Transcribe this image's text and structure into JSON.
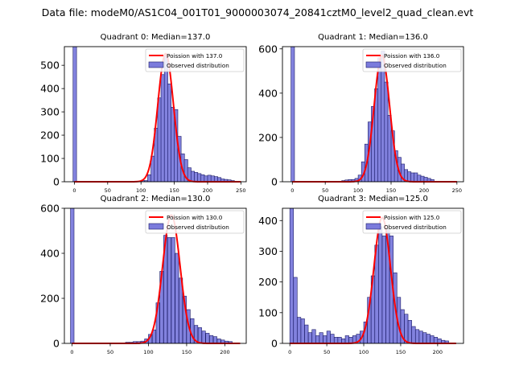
{
  "figure": {
    "title": "Data file: modeM0/AS1C04_001T01_9000003074_20841cztM0_level2_quad_clean.evt"
  },
  "colors": {
    "bar_fill": "#7b7bdc",
    "bar_edge": "#1a1a66",
    "poisson_line": "#ff0000",
    "axis": "#000000"
  },
  "chart_data": [
    {
      "type": "bar",
      "title": "Quadrant 0: Median=137.0",
      "legend": {
        "placement": "top-right",
        "line_label": "Poission with 137.0",
        "bar_label": "Observed distribution"
      },
      "xlim": [
        -15,
        258
      ],
      "ylim": [
        0,
        580
      ],
      "xticks": [
        0,
        50,
        100,
        150,
        200,
        250
      ],
      "yticks": [
        0,
        100,
        200,
        300,
        400,
        500
      ],
      "bin_width": 5.3,
      "bins": [
        {
          "x": -2,
          "y": 580
        },
        {
          "x": 100,
          "y": 5
        },
        {
          "x": 105,
          "y": 5
        },
        {
          "x": 110,
          "y": 30
        },
        {
          "x": 115,
          "y": 110
        },
        {
          "x": 120,
          "y": 230
        },
        {
          "x": 125,
          "y": 360
        },
        {
          "x": 130,
          "y": 460
        },
        {
          "x": 135,
          "y": 540
        },
        {
          "x": 140,
          "y": 420
        },
        {
          "x": 145,
          "y": 320
        },
        {
          "x": 150,
          "y": 310
        },
        {
          "x": 155,
          "y": 195
        },
        {
          "x": 160,
          "y": 120
        },
        {
          "x": 165,
          "y": 95
        },
        {
          "x": 170,
          "y": 60
        },
        {
          "x": 175,
          "y": 45
        },
        {
          "x": 180,
          "y": 40
        },
        {
          "x": 185,
          "y": 35
        },
        {
          "x": 190,
          "y": 30
        },
        {
          "x": 195,
          "y": 25
        },
        {
          "x": 200,
          "y": 28
        },
        {
          "x": 205,
          "y": 25
        },
        {
          "x": 210,
          "y": 22
        },
        {
          "x": 215,
          "y": 18
        },
        {
          "x": 220,
          "y": 12
        },
        {
          "x": 225,
          "y": 10
        },
        {
          "x": 230,
          "y": 8
        },
        {
          "x": 235,
          "y": 5
        }
      ],
      "poisson": {
        "mean": 137.0,
        "sigma": 11.7,
        "peak": 550,
        "x_start": 0,
        "x_end": 250
      }
    },
    {
      "type": "bar",
      "title": "Quadrant 1: Median=136.0",
      "legend": {
        "placement": "top-right",
        "line_label": "Poission with 136.0",
        "bar_label": "Observed distribution"
      },
      "xlim": [
        -15,
        260
      ],
      "ylim": [
        0,
        610
      ],
      "xticks": [
        0,
        50,
        100,
        150,
        200,
        250
      ],
      "yticks": [
        0,
        200,
        400,
        600
      ],
      "bin_width": 5.3,
      "bins": [
        {
          "x": -2,
          "y": 610
        },
        {
          "x": 75,
          "y": 5
        },
        {
          "x": 80,
          "y": 8
        },
        {
          "x": 85,
          "y": 10
        },
        {
          "x": 90,
          "y": 10
        },
        {
          "x": 95,
          "y": 15
        },
        {
          "x": 100,
          "y": 30
        },
        {
          "x": 105,
          "y": 90
        },
        {
          "x": 110,
          "y": 170
        },
        {
          "x": 115,
          "y": 270
        },
        {
          "x": 120,
          "y": 340
        },
        {
          "x": 125,
          "y": 420
        },
        {
          "x": 130,
          "y": 560
        },
        {
          "x": 135,
          "y": 590
        },
        {
          "x": 140,
          "y": 450
        },
        {
          "x": 145,
          "y": 300
        },
        {
          "x": 150,
          "y": 230
        },
        {
          "x": 155,
          "y": 140
        },
        {
          "x": 160,
          "y": 110
        },
        {
          "x": 165,
          "y": 80
        },
        {
          "x": 170,
          "y": 55
        },
        {
          "x": 175,
          "y": 45
        },
        {
          "x": 180,
          "y": 40
        },
        {
          "x": 185,
          "y": 40
        },
        {
          "x": 190,
          "y": 30
        },
        {
          "x": 195,
          "y": 25
        },
        {
          "x": 200,
          "y": 20
        },
        {
          "x": 205,
          "y": 15
        },
        {
          "x": 210,
          "y": 10
        }
      ],
      "poisson": {
        "mean": 136.0,
        "sigma": 11.7,
        "peak": 570,
        "x_start": 0,
        "x_end": 250
      }
    },
    {
      "type": "bar",
      "title": "Quadrant 2: Median=130.0",
      "legend": {
        "placement": "top-right",
        "line_label": "Poission with 130.0",
        "bar_label": "Observed distribution"
      },
      "xlim": [
        -10,
        228
      ],
      "ylim": [
        0,
        600
      ],
      "xticks": [
        0,
        50,
        100,
        150,
        200
      ],
      "yticks": [
        0,
        200,
        400,
        600
      ],
      "bin_width": 4.65,
      "bins": [
        {
          "x": -2,
          "y": 600
        },
        {
          "x": 70,
          "y": 5
        },
        {
          "x": 75,
          "y": 5
        },
        {
          "x": 80,
          "y": 8
        },
        {
          "x": 85,
          "y": 8
        },
        {
          "x": 90,
          "y": 10
        },
        {
          "x": 95,
          "y": 20
        },
        {
          "x": 100,
          "y": 40
        },
        {
          "x": 105,
          "y": 60
        },
        {
          "x": 110,
          "y": 180
        },
        {
          "x": 115,
          "y": 320
        },
        {
          "x": 120,
          "y": 480
        },
        {
          "x": 125,
          "y": 470
        },
        {
          "x": 130,
          "y": 470
        },
        {
          "x": 135,
          "y": 400
        },
        {
          "x": 140,
          "y": 290
        },
        {
          "x": 145,
          "y": 210
        },
        {
          "x": 150,
          "y": 150
        },
        {
          "x": 155,
          "y": 110
        },
        {
          "x": 160,
          "y": 80
        },
        {
          "x": 165,
          "y": 70
        },
        {
          "x": 170,
          "y": 55
        },
        {
          "x": 175,
          "y": 45
        },
        {
          "x": 180,
          "y": 35
        },
        {
          "x": 185,
          "y": 30
        },
        {
          "x": 190,
          "y": 20
        },
        {
          "x": 195,
          "y": 15
        },
        {
          "x": 200,
          "y": 10
        },
        {
          "x": 205,
          "y": 8
        }
      ],
      "poisson": {
        "mean": 130.0,
        "sigma": 11.4,
        "peak": 570,
        "x_start": 0,
        "x_end": 220
      }
    },
    {
      "type": "bar",
      "title": "Quadrant 3: Median=125.0",
      "legend": {
        "placement": "top-right",
        "line_label": "Poission with 125.0",
        "bar_label": "Observed distribution"
      },
      "xlim": [
        -10,
        235
      ],
      "ylim": [
        0,
        440
      ],
      "xticks": [
        0,
        50,
        100,
        150,
        200
      ],
      "yticks": [
        0,
        100,
        200,
        300,
        400
      ],
      "bin_width": 4.9,
      "bins": [
        {
          "x": 0,
          "y": 440
        },
        {
          "x": 5,
          "y": 215
        },
        {
          "x": 10,
          "y": 85
        },
        {
          "x": 15,
          "y": 80
        },
        {
          "x": 20,
          "y": 60
        },
        {
          "x": 25,
          "y": 35
        },
        {
          "x": 30,
          "y": 45
        },
        {
          "x": 35,
          "y": 25
        },
        {
          "x": 40,
          "y": 35
        },
        {
          "x": 45,
          "y": 25
        },
        {
          "x": 50,
          "y": 40
        },
        {
          "x": 55,
          "y": 30
        },
        {
          "x": 60,
          "y": 20
        },
        {
          "x": 65,
          "y": 20
        },
        {
          "x": 70,
          "y": 15
        },
        {
          "x": 75,
          "y": 25
        },
        {
          "x": 80,
          "y": 20
        },
        {
          "x": 85,
          "y": 25
        },
        {
          "x": 90,
          "y": 30
        },
        {
          "x": 95,
          "y": 40
        },
        {
          "x": 100,
          "y": 70
        },
        {
          "x": 105,
          "y": 150
        },
        {
          "x": 110,
          "y": 220
        },
        {
          "x": 115,
          "y": 320
        },
        {
          "x": 120,
          "y": 380
        },
        {
          "x": 125,
          "y": 350
        },
        {
          "x": 130,
          "y": 370
        },
        {
          "x": 135,
          "y": 350
        },
        {
          "x": 140,
          "y": 230
        },
        {
          "x": 145,
          "y": 150
        },
        {
          "x": 150,
          "y": 110
        },
        {
          "x": 155,
          "y": 95
        },
        {
          "x": 160,
          "y": 75
        },
        {
          "x": 165,
          "y": 55
        },
        {
          "x": 170,
          "y": 45
        },
        {
          "x": 175,
          "y": 40
        },
        {
          "x": 180,
          "y": 35
        },
        {
          "x": 185,
          "y": 30
        },
        {
          "x": 190,
          "y": 25
        },
        {
          "x": 195,
          "y": 20
        },
        {
          "x": 200,
          "y": 15
        },
        {
          "x": 205,
          "y": 10
        },
        {
          "x": 210,
          "y": 8
        }
      ],
      "poisson": {
        "mean": 125.0,
        "sigma": 11.2,
        "peak": 410,
        "x_start": 0,
        "x_end": 225
      }
    }
  ]
}
